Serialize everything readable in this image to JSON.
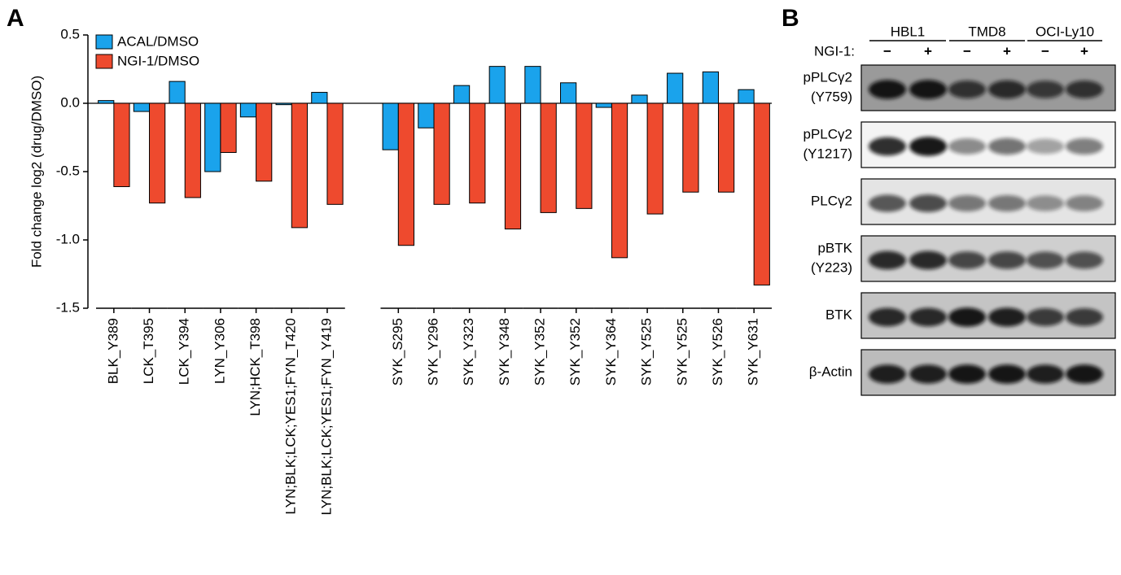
{
  "chart_data": {
    "type": "bar",
    "panel_label": "A",
    "ylabel": "Fold change log2 (drug/DMSO)",
    "categories": [
      "BLK_Y389",
      "LCK_T395",
      "LCK_Y394",
      "LYN_Y306",
      "LYN;HCK_T398",
      "LYN;BLK;LCK;YES1;FYN_T420",
      "LYN;BLK;LCK;YES1;FYN_Y419",
      null,
      "SYK_S295",
      "SYK_Y296",
      "SYK_Y323",
      "SYK_Y348",
      "SYK_Y352",
      "SYK_Y352",
      "SYK_Y364",
      "SYK_Y525",
      "SYK_Y525",
      "SYK_Y526",
      "SYK_Y631"
    ],
    "series": [
      {
        "name": "ACAL/DMSO",
        "color": "#1aa3ec",
        "values": [
          0.02,
          -0.06,
          0.16,
          -0.5,
          -0.1,
          -0.01,
          0.08,
          null,
          -0.34,
          -0.18,
          0.13,
          0.27,
          0.27,
          0.15,
          -0.03,
          0.06,
          0.22,
          0.23,
          0.1
        ]
      },
      {
        "name": "NGI-1/DMSO",
        "color": "#ee4a2e",
        "values": [
          -0.61,
          -0.73,
          -0.69,
          -0.36,
          -0.57,
          -0.91,
          -0.74,
          null,
          -1.04,
          -0.74,
          -0.73,
          -0.92,
          -0.8,
          -0.77,
          -1.13,
          -0.81,
          -0.65,
          -0.65,
          -1.33
        ]
      }
    ],
    "ylim": [
      -1.5,
      0.5
    ],
    "yticks": [
      0.5,
      {
        "value": 0,
        "label": "0.0"
      },
      -0.5,
      {
        "value": -1,
        "label": "-1.0"
      },
      -1.5
    ],
    "legend": "upper-left",
    "grid": false
  },
  "blot": {
    "panel_label": "B",
    "cell_lines": [
      "HBL1",
      "TMD8",
      "OCI-Ly10"
    ],
    "treatment_label": "NGI-1:",
    "treatment_signs": [
      "−",
      "+",
      "−",
      "+",
      "−",
      "+"
    ],
    "rows": [
      {
        "label": [
          "pPLCγ2",
          "(Y759)"
        ]
      },
      {
        "label": [
          "pPLCγ2",
          "(Y1217)"
        ]
      },
      {
        "label": [
          "PLCγ2"
        ]
      },
      {
        "label": [
          "pBTK",
          "(Y223)"
        ]
      },
      {
        "label": [
          "BTK"
        ]
      },
      {
        "label": [
          "β-Actin"
        ]
      }
    ]
  }
}
